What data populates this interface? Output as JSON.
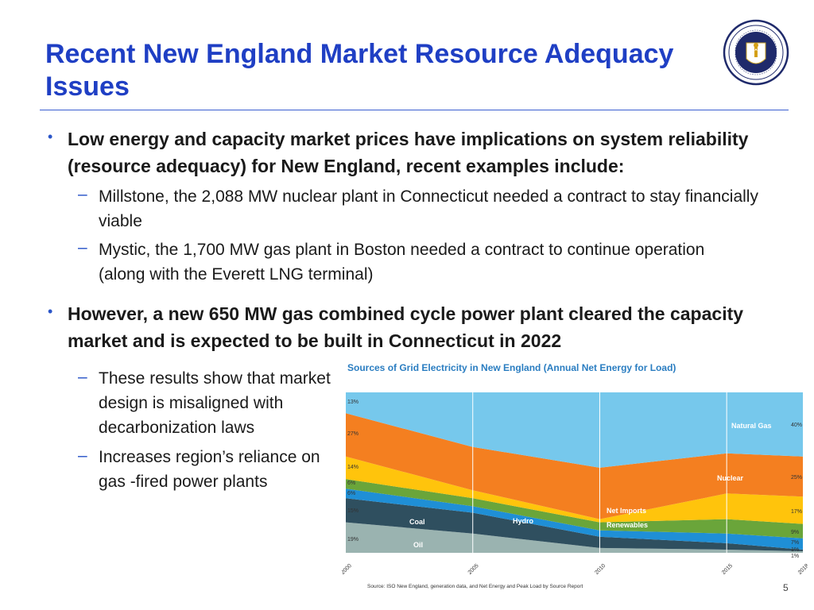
{
  "slide": {
    "title": "Recent New England Market Resource Adequacy Issues",
    "bullet1": "Low energy and capacity market prices have implications on system reliability (resource adequacy) for New England, recent examples include:",
    "sub1a": "Millstone, the 2,088 MW nuclear plant in Connecticut needed a contract to stay financially viable",
    "sub1b": "Mystic, the 1,700 MW gas plant in Boston needed a contract to continue operation (along with the Everett LNG terminal)",
    "bullet2": "However, a new 650 MW gas combined cycle power plant cleared the capacity market and is expected to be built in Connecticut in 2022",
    "sub2a": "These results show that market design is misaligned with decarbonization laws",
    "sub2b": "Increases region’s reliance on gas -fired power plants",
    "page_number": "5"
  },
  "seal": {
    "text_top": "SIGILLUM REIPUBLICÆ",
    "text_bottom": "MASSACHUSETTENSIS"
  },
  "chart_data": {
    "type": "area",
    "title": "Sources of Grid Electricity in New England (Annual Net Energy for Load)",
    "source": "Source: ISO New England, generation data, and Net Energy and Peak Load by Source Report",
    "x": [
      "2000",
      "2005",
      "2010",
      "2015",
      "2018"
    ],
    "stacked": true,
    "series": [
      {
        "name": "Oil",
        "color": "#9ab3b0",
        "values": [
          19,
          12,
          3,
          2,
          1
        ]
      },
      {
        "name": "Coal",
        "color": "#2f4f5f",
        "values": [
          15,
          13,
          7,
          4,
          1
        ]
      },
      {
        "name": "Hydro",
        "color": "#1f8fd6",
        "values": [
          6,
          4,
          4,
          6,
          7
        ]
      },
      {
        "name": "Renewables",
        "color": "#6aa53a",
        "values": [
          6,
          5,
          5,
          9,
          9
        ]
      },
      {
        "name": "Net Imports",
        "color": "#ffc40c",
        "values": [
          14,
          5,
          2,
          16,
          17
        ]
      },
      {
        "name": "Nuclear",
        "color": "#f47f20",
        "values": [
          27,
          27,
          32,
          25,
          25
        ]
      },
      {
        "name": "Natural Gas",
        "color": "#76c8ec",
        "values": [
          13,
          34,
          47,
          38,
          40
        ]
      }
    ],
    "left_labels": [
      "13%",
      "27%",
      "14%",
      "6%",
      "6%",
      "15%",
      "19%"
    ],
    "right_labels": [
      "40%",
      "25%",
      "17%",
      "9%",
      "7%",
      "1%",
      "1%"
    ],
    "in_chart_labels": [
      "Natural Gas",
      "Nuclear",
      "Net Imports",
      "Renewables",
      "Hydro",
      "Coal",
      "Oil"
    ],
    "ylim": [
      0,
      100
    ],
    "grid": "vertical"
  }
}
